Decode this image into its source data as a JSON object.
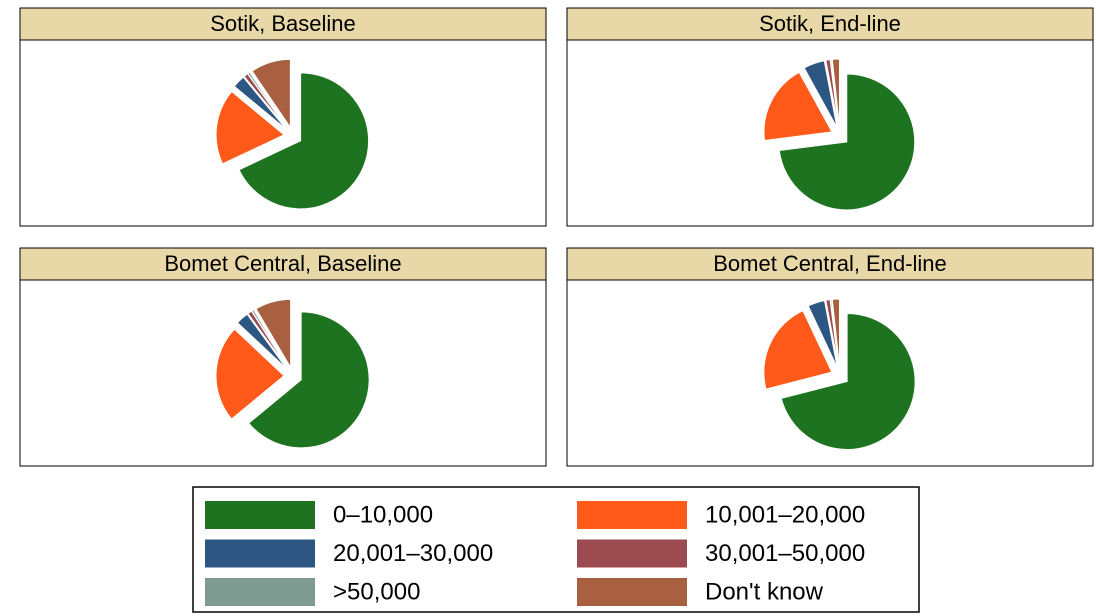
{
  "chart_data": [
    {
      "type": "pie",
      "title": "Sotik, Baseline",
      "categories": [
        "0–10,000",
        "10,001–20,000",
        "20,001–30,000",
        "30,001–50,000",
        ">50,000",
        "Don't know"
      ],
      "values": [
        68,
        18,
        3,
        1,
        0.5,
        9.5
      ],
      "colors": [
        "#1e7320",
        "#ff5a1a",
        "#2e5682",
        "#9b4a4f",
        "#7f9a91",
        "#a86040"
      ]
    },
    {
      "type": "pie",
      "title": "Sotik, End-line",
      "categories": [
        "0–10,000",
        "10,001–20,000",
        "20,001–30,000",
        "30,001–50,000",
        ">50,000",
        "Don't know"
      ],
      "values": [
        73,
        19,
        5,
        1,
        0.3,
        1.7
      ],
      "colors": [
        "#1e7320",
        "#ff5a1a",
        "#2e5682",
        "#9b4a4f",
        "#7f9a91",
        "#a86040"
      ]
    },
    {
      "type": "pie",
      "title": "Bomet Central, Baseline",
      "categories": [
        "0–10,000",
        "10,001–20,000",
        "20,001–30,000",
        "30,001–50,000",
        ">50,000",
        "Don't know"
      ],
      "values": [
        64,
        23,
        3,
        1,
        0.5,
        8.5
      ],
      "colors": [
        "#1e7320",
        "#ff5a1a",
        "#2e5682",
        "#9b4a4f",
        "#7f9a91",
        "#a86040"
      ]
    },
    {
      "type": "pie",
      "title": "Bomet Central, End-line",
      "categories": [
        "0–10,000",
        "10,001–20,000",
        "20,001–30,000",
        "30,001–50,000",
        ">50,000",
        "Don't know"
      ],
      "values": [
        71,
        22,
        4,
        1,
        0.3,
        1.7
      ],
      "colors": [
        "#1e7320",
        "#ff5a1a",
        "#2e5682",
        "#9b4a4f",
        "#7f9a91",
        "#a86040"
      ]
    }
  ]
}
